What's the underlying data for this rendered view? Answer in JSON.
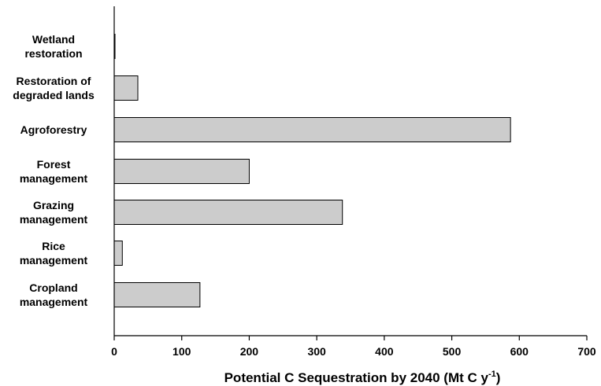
{
  "chart_data": {
    "type": "bar",
    "orientation": "horizontal",
    "categories": [
      "Wetland restoration",
      "Restoration of degraded lands",
      "Agroforestry",
      "Forest management",
      "Grazing management",
      "Rice management",
      "Cropland management"
    ],
    "category_label_lines": [
      [
        "Wetland",
        "restoration"
      ],
      [
        "Restoration of",
        "degraded lands"
      ],
      [
        "Agroforestry"
      ],
      [
        "Forest",
        "management"
      ],
      [
        "Grazing",
        "management"
      ],
      [
        "Rice",
        "management"
      ],
      [
        "Cropland",
        "management"
      ]
    ],
    "values": [
      1,
      35,
      587,
      200,
      338,
      12,
      127
    ],
    "xlim": [
      0,
      700
    ],
    "xticks": [
      0,
      100,
      200,
      300,
      400,
      500,
      600,
      700
    ],
    "xlabel": "Potential C Sequestration by 2040 (Mt C y",
    "xlabel_superscript": "-1",
    "xlabel_suffix": ")",
    "ylabel": "",
    "title": "",
    "grid": false,
    "legend": "none",
    "bar_color": "#cccccc",
    "bar_edge_color": "#000000"
  }
}
